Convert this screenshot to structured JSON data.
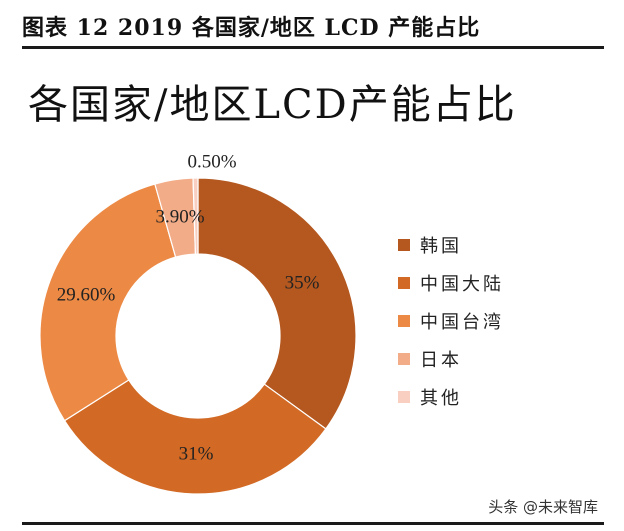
{
  "figure_caption": "图表 12 2019 各国家/地区 LCD 产能占比",
  "watermark": "头条 @未来智库",
  "chart_data": {
    "type": "pie",
    "variant": "donut",
    "title": "各国家/地区LCD产能占比",
    "legend_position": "right",
    "slices": [
      {
        "name": "韩国",
        "value": 35,
        "label": "35%",
        "color": "#b4581f"
      },
      {
        "name": "中国大陆",
        "value": 31,
        "label": "31%",
        "color": "#d26a25"
      },
      {
        "name": "中国台湾",
        "value": 29.6,
        "label": "29.60%",
        "color": "#ec8a45"
      },
      {
        "name": "日本",
        "value": 3.9,
        "label": "3.90%",
        "color": "#f3ac88"
      },
      {
        "name": "其他",
        "value": 0.5,
        "label": "0.50%",
        "color": "#f8cfc0"
      }
    ]
  }
}
